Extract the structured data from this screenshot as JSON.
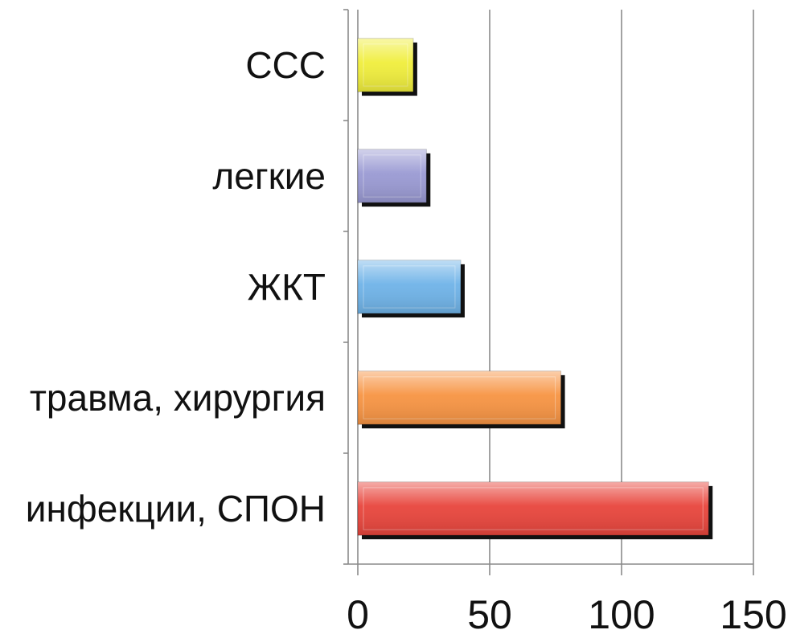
{
  "chart_data": {
    "type": "bar",
    "orientation": "horizontal",
    "title": "",
    "xlabel": "",
    "ylabel": "",
    "categories": [
      "инфекции, СПОН",
      "травма, хирургия",
      "ЖКТ",
      "легкие",
      "ССС"
    ],
    "values": [
      133,
      77,
      39,
      26,
      21
    ],
    "colors": [
      "#e8453c",
      "#f79443",
      "#6fb3e8",
      "#9a9ad3",
      "#f0ee3c"
    ],
    "xlim": [
      0,
      150
    ],
    "xticks": [
      0,
      50,
      100,
      150
    ],
    "xtick_labels": [
      "0",
      "50",
      "100",
      "150"
    ],
    "grid": "vertical",
    "legend": "none"
  }
}
